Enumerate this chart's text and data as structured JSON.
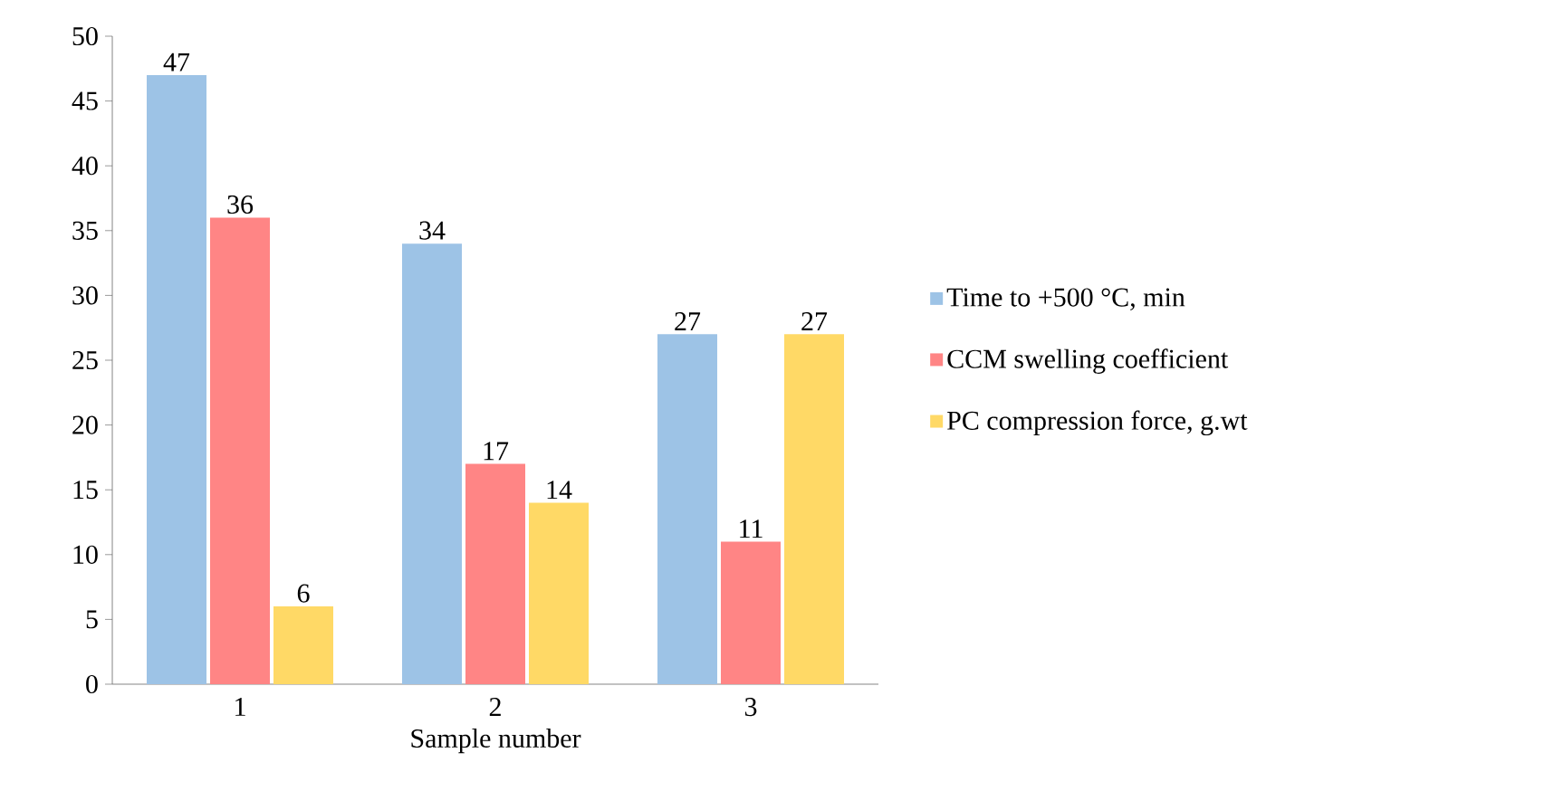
{
  "chart_data": {
    "type": "bar",
    "xlabel": "Sample number",
    "categories": [
      "1",
      "2",
      "3"
    ],
    "series": [
      {
        "name": "Time to +500 °C, min",
        "color": "#9dc3e6",
        "values": [
          47,
          34,
          27
        ]
      },
      {
        "name": "CCM swelling coefficient",
        "color": "#ff8585",
        "values": [
          36,
          17,
          11
        ]
      },
      {
        "name": "PC compression force, g.wt",
        "color": "#ffd966",
        "values": [
          6,
          14,
          27
        ]
      }
    ],
    "ylim": [
      0,
      50
    ],
    "yticks": [
      0,
      5,
      10,
      15,
      20,
      25,
      30,
      35,
      40,
      45,
      50
    ],
    "data_labels": true,
    "legend": "right",
    "grid": false
  }
}
